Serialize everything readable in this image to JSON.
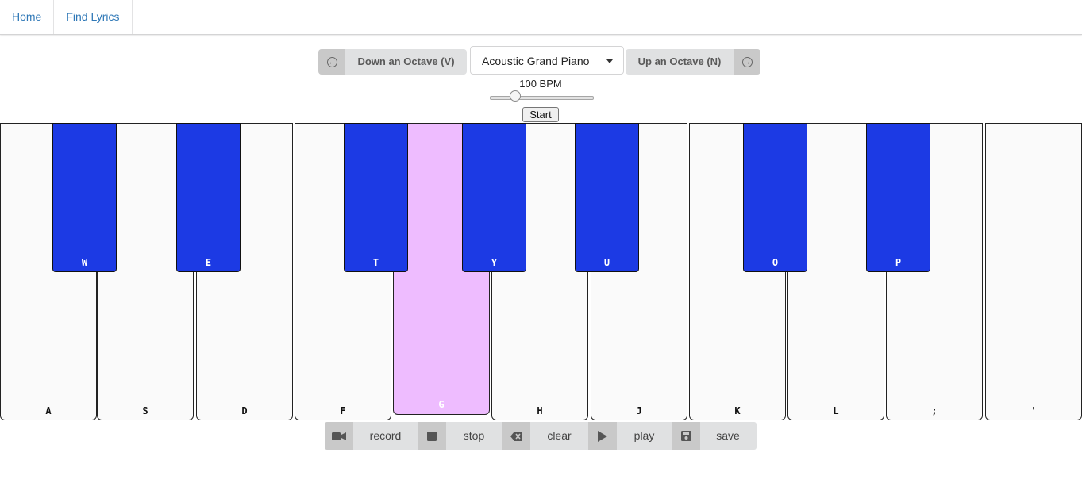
{
  "nav": {
    "items": [
      {
        "label": "Home"
      },
      {
        "label": "Find Lyrics"
      }
    ]
  },
  "octave": {
    "down_label": "Down an Octave (V)",
    "up_label": "Up an Octave (N)",
    "down_icon": "arrow-left-circle-icon",
    "up_icon": "arrow-right-circle-icon"
  },
  "instrument": {
    "selected": "Acoustic Grand Piano"
  },
  "tempo": {
    "label": "100 BPM",
    "value": 100,
    "slider_fraction": 0.21
  },
  "start_button": "Start",
  "keyboard": {
    "white_keys": [
      "A",
      "S",
      "D",
      "F",
      "G",
      "H",
      "J",
      "K",
      "L",
      ";",
      "'"
    ],
    "black_keys": [
      "W",
      "E",
      "T",
      "Y",
      "U",
      "O",
      "P"
    ],
    "active_key": "G",
    "colors": {
      "black_key": "#1c3ae4",
      "active_key": "#eebcff",
      "white_key": "#fafafa"
    }
  },
  "controls": [
    {
      "label": "record",
      "icon": "video-camera-icon"
    },
    {
      "label": "stop",
      "icon": "stop-icon"
    },
    {
      "label": "clear",
      "icon": "eraser-icon"
    },
    {
      "label": "play",
      "icon": "play-icon"
    },
    {
      "label": "save",
      "icon": "save-icon"
    }
  ]
}
